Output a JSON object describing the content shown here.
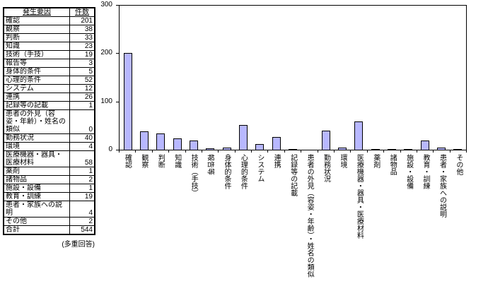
{
  "table": {
    "headers": [
      "発生要因",
      "件数"
    ],
    "rows": [
      [
        "確認",
        201
      ],
      [
        "観察",
        38
      ],
      [
        "判断",
        33
      ],
      [
        "知識",
        23
      ],
      [
        "技術（手技）",
        19
      ],
      [
        "報告等",
        3
      ],
      [
        "身体的条件",
        5
      ],
      [
        "心理的条件",
        52
      ],
      [
        "システム",
        12
      ],
      [
        "連携",
        26
      ],
      [
        "記録等の記載",
        1
      ],
      [
        "患者の外見（容姿・年齢）・姓名の類似",
        0
      ],
      [
        "勤務状況",
        40
      ],
      [
        "環境",
        4
      ],
      [
        "医療機器・器具・医療材料",
        58
      ],
      [
        "薬剤",
        1
      ],
      [
        "諸物品",
        2
      ],
      [
        "施設・設備",
        1
      ],
      [
        "教育・訓練",
        19
      ],
      [
        "患者・家族への説明",
        4
      ],
      [
        "その他",
        2
      ],
      [
        "合計",
        544
      ]
    ]
  },
  "note": "(多重回答)",
  "chart_data": {
    "type": "bar",
    "title": "",
    "xlabel": "",
    "ylabel": "",
    "categories": [
      "確認",
      "観察",
      "判断",
      "知識",
      "技術（手技）",
      "報告等",
      "身体的条件",
      "心理的条件",
      "システム",
      "連携",
      "記録等の記載",
      "患者の外見（容姿・年齢）・姓名の類似",
      "勤務状況",
      "環境",
      "医療機器・器具・医療材料",
      "薬剤",
      "諸物品",
      "施設・設備",
      "教育・訓練",
      "患者・家族への説明",
      "その他"
    ],
    "values": [
      201,
      38,
      33,
      23,
      19,
      3,
      5,
      52,
      12,
      26,
      1,
      0,
      40,
      4,
      58,
      1,
      2,
      1,
      19,
      4,
      2
    ],
    "ylim": [
      0,
      300
    ],
    "yticks": [
      0,
      100,
      200,
      300
    ],
    "grid": false,
    "legend": false,
    "bar_color": "#9999ff",
    "bar_border_color": "#000000",
    "sideways_labels": [
      "報告等"
    ]
  }
}
